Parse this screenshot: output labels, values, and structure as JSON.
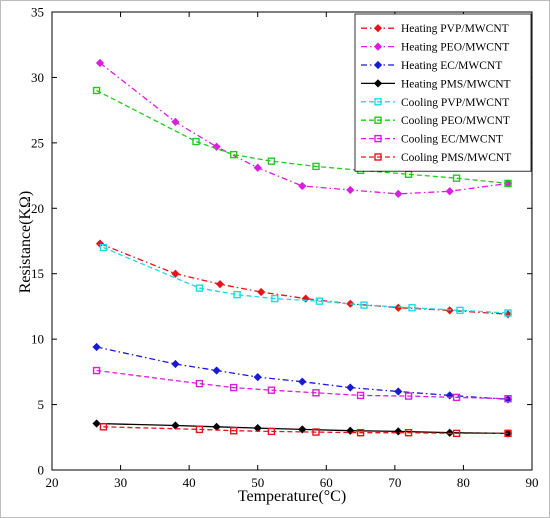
{
  "chart_data": {
    "type": "line",
    "xlabel": "Temperature(°C)",
    "ylabel": "Resistance(KΩ)",
    "xlim": [
      20,
      90
    ],
    "ylim": [
      0,
      35
    ],
    "xticks": [
      20,
      30,
      40,
      50,
      60,
      70,
      80,
      90
    ],
    "yticks": [
      0,
      5,
      10,
      15,
      20,
      25,
      30,
      35
    ],
    "grid": false,
    "legend_position": "top-right",
    "series": [
      {
        "name": "Heating PVP/MWCNT",
        "color": "#e8141b",
        "dash": "dashdot",
        "marker": "diamond",
        "x": [
          27,
          38,
          44.5,
          50.5,
          57,
          63.5,
          70.5,
          78,
          86.5
        ],
        "y": [
          17.3,
          15.0,
          14.2,
          13.6,
          13.1,
          12.7,
          12.4,
          12.2,
          11.9
        ]
      },
      {
        "name": "Heating PEO/MWCNT",
        "color": "#e01be0",
        "dash": "dashdot",
        "marker": "diamond",
        "x": [
          27,
          38,
          44,
          50,
          56.5,
          63.5,
          70.5,
          78,
          86.5
        ],
        "y": [
          31.1,
          26.6,
          24.7,
          23.1,
          21.7,
          21.4,
          21.1,
          21.3,
          21.9
        ]
      },
      {
        "name": "Heating EC/MWCNT",
        "color": "#1a1ad6",
        "dash": "dashdot",
        "marker": "diamond",
        "x": [
          26.5,
          38,
          44,
          50,
          56.5,
          63.5,
          70.5,
          78,
          86.5
        ],
        "y": [
          9.4,
          8.1,
          7.6,
          7.1,
          6.75,
          6.3,
          6.0,
          5.7,
          5.4
        ]
      },
      {
        "name": "Heating PMS/MWCNT",
        "color": "#000000",
        "dash": "solid",
        "marker": "diamond",
        "x": [
          26.5,
          38,
          44,
          50,
          56.5,
          63.5,
          70.5,
          78,
          86.5
        ],
        "y": [
          3.55,
          3.4,
          3.3,
          3.2,
          3.1,
          3.0,
          2.95,
          2.85,
          2.8
        ]
      },
      {
        "name": "Cooling PVP/MWCNT",
        "color": "#22d8e6",
        "dash": "dashed",
        "marker": "square",
        "x": [
          27.5,
          41.5,
          47,
          52.5,
          59,
          65.5,
          72.5,
          79.5,
          86.5
        ],
        "y": [
          17.0,
          13.9,
          13.4,
          13.1,
          12.9,
          12.6,
          12.4,
          12.2,
          12.0
        ]
      },
      {
        "name": "Cooling PEO/MWCNT",
        "color": "#22c922",
        "dash": "dashed",
        "marker": "square",
        "x": [
          26.5,
          41,
          46.5,
          52,
          58.5,
          65,
          72,
          79,
          86.5
        ],
        "y": [
          29.0,
          25.1,
          24.1,
          23.6,
          23.2,
          22.9,
          22.6,
          22.3,
          21.9
        ]
      },
      {
        "name": "Cooling EC/MWCNT",
        "color": "#d81fd8",
        "dash": "dashed",
        "marker": "square",
        "x": [
          26.5,
          41.5,
          46.5,
          52,
          58.5,
          65,
          72,
          79,
          86.5
        ],
        "y": [
          7.6,
          6.6,
          6.3,
          6.1,
          5.9,
          5.7,
          5.65,
          5.55,
          5.45
        ]
      },
      {
        "name": "Cooling PMS/MWCNT",
        "color": "#e8141b",
        "dash": "dashed",
        "marker": "square",
        "x": [
          27.5,
          41.5,
          46.5,
          52,
          58.5,
          65,
          72,
          79,
          86.5
        ],
        "y": [
          3.3,
          3.1,
          3.0,
          2.95,
          2.9,
          2.85,
          2.85,
          2.8,
          2.8
        ]
      }
    ]
  }
}
